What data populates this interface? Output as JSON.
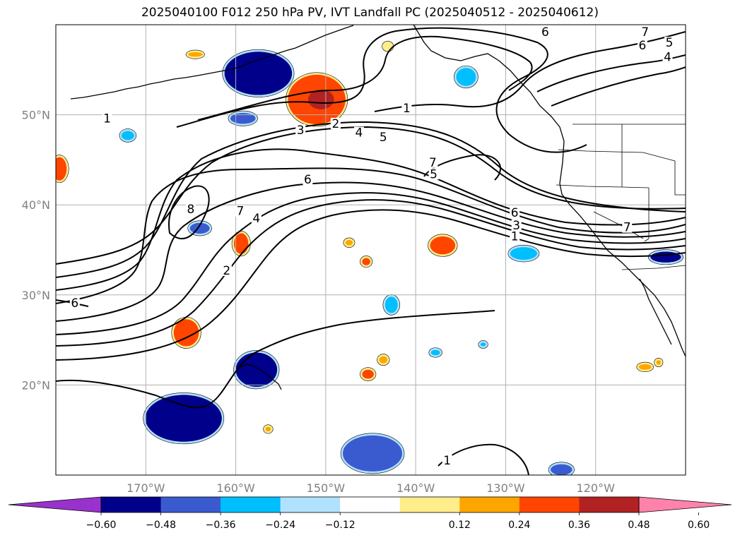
{
  "title": "2025040100 F012 250 hPa PV, IVT Landfall PC (2025040512 - 2025040612)",
  "map": {
    "projection": "plate-carree",
    "lon_range": [
      -180,
      -110
    ],
    "lat_range": [
      10,
      60
    ],
    "gridlines": true,
    "lat_ticks": [
      {
        "value": 50,
        "label": "50°N"
      },
      {
        "value": 40,
        "label": "40°N"
      },
      {
        "value": 30,
        "label": "30°N"
      },
      {
        "value": 20,
        "label": "20°N"
      }
    ],
    "lon_ticks": [
      {
        "value": -170,
        "label": "170°W"
      },
      {
        "value": -160,
        "label": "160°W"
      },
      {
        "value": -150,
        "label": "150°W"
      },
      {
        "value": -140,
        "label": "140°W"
      },
      {
        "value": -130,
        "label": "130°W"
      },
      {
        "value": -120,
        "label": "120°W"
      }
    ],
    "contour_field": "250 hPa PV",
    "contour_labels": [
      {
        "text": "1",
        "lon": -174.3,
        "lat": 49.4
      },
      {
        "text": "2",
        "lon": -148.9,
        "lat": 48.8
      },
      {
        "text": "3",
        "lon": -152.8,
        "lat": 48.1
      },
      {
        "text": "4",
        "lon": -146.3,
        "lat": 47.8
      },
      {
        "text": "5",
        "lon": -143.6,
        "lat": 47.3
      },
      {
        "text": "1",
        "lon": -141.0,
        "lat": 50.5
      },
      {
        "text": "6",
        "lon": -152.0,
        "lat": 42.6
      },
      {
        "text": "7",
        "lon": -138.1,
        "lat": 44.5
      },
      {
        "text": "5",
        "lon": -138.0,
        "lat": 43.2
      },
      {
        "text": "6",
        "lon": -129.0,
        "lat": 38.9
      },
      {
        "text": "3",
        "lon": -128.8,
        "lat": 37.5
      },
      {
        "text": "1",
        "lon": -129.0,
        "lat": 36.3
      },
      {
        "text": "8",
        "lon": -165.0,
        "lat": 39.3
      },
      {
        "text": "7",
        "lon": -159.5,
        "lat": 39.1
      },
      {
        "text": "4",
        "lon": -157.7,
        "lat": 38.3
      },
      {
        "text": "2",
        "lon": -161.0,
        "lat": 32.5
      },
      {
        "text": "6",
        "lon": -177.9,
        "lat": 28.9
      },
      {
        "text": "7",
        "lon": -116.5,
        "lat": 37.3
      },
      {
        "text": "6",
        "lon": -125.6,
        "lat": 59.0
      },
      {
        "text": "7",
        "lon": -114.5,
        "lat": 59.0
      },
      {
        "text": "6",
        "lon": -114.8,
        "lat": 57.5
      },
      {
        "text": "5",
        "lon": -111.8,
        "lat": 57.8
      },
      {
        "text": "4",
        "lon": -112.0,
        "lat": 56.2
      },
      {
        "text": "1",
        "lon": -136.5,
        "lat": 11.4
      }
    ],
    "shaded_field": "IVT Landfall PC",
    "shaded_regions": [
      {
        "lon": -157.5,
        "lat": 54.6,
        "w": 7.5,
        "h": 4.8,
        "value": -0.5
      },
      {
        "lon": -151.0,
        "lat": 51.7,
        "w": 6.4,
        "h": 5.5,
        "value": 0.45
      },
      {
        "lon": -159.2,
        "lat": 49.6,
        "w": 2.8,
        "h": 1.2,
        "value": -0.38
      },
      {
        "lon": -172.0,
        "lat": 47.7,
        "w": 1.4,
        "h": 1.0,
        "value": -0.3
      },
      {
        "lon": -179.6,
        "lat": 44.0,
        "w": 1.6,
        "h": 2.6,
        "value": 0.4
      },
      {
        "lon": -164.5,
        "lat": 56.7,
        "w": 1.6,
        "h": 0.5,
        "value": 0.3
      },
      {
        "lon": -143.1,
        "lat": 57.6,
        "w": 0.8,
        "h": 0.7,
        "value": 0.2
      },
      {
        "lon": -134.4,
        "lat": 54.2,
        "w": 2.2,
        "h": 2.0,
        "value": -0.32
      },
      {
        "lon": -164.0,
        "lat": 37.4,
        "w": 2.2,
        "h": 1.2,
        "value": -0.38
      },
      {
        "lon": -159.4,
        "lat": 35.7,
        "w": 1.6,
        "h": 2.3,
        "value": 0.45
      },
      {
        "lon": -147.4,
        "lat": 35.8,
        "w": 0.8,
        "h": 0.6,
        "value": 0.3
      },
      {
        "lon": -145.5,
        "lat": 33.7,
        "w": 0.9,
        "h": 0.8,
        "value": 0.4
      },
      {
        "lon": -137.0,
        "lat": 35.5,
        "w": 2.8,
        "h": 2.0,
        "value": 0.45
      },
      {
        "lon": -128.0,
        "lat": 34.6,
        "w": 3.0,
        "h": 1.4,
        "value": -0.35
      },
      {
        "lon": -112.2,
        "lat": 34.2,
        "w": 3.4,
        "h": 1.2,
        "value": -0.5
      },
      {
        "lon": -142.7,
        "lat": 28.9,
        "w": 1.4,
        "h": 1.8,
        "value": -0.35
      },
      {
        "lon": -165.5,
        "lat": 25.8,
        "w": 2.8,
        "h": 3.0,
        "value": 0.45
      },
      {
        "lon": -157.7,
        "lat": 21.7,
        "w": 4.6,
        "h": 3.8,
        "value": -0.5
      },
      {
        "lon": -137.8,
        "lat": 23.6,
        "w": 1.0,
        "h": 0.6,
        "value": -0.3
      },
      {
        "lon": -132.5,
        "lat": 24.5,
        "w": 0.6,
        "h": 0.4,
        "value": -0.3
      },
      {
        "lon": -143.6,
        "lat": 22.8,
        "w": 0.9,
        "h": 0.8,
        "value": 0.35
      },
      {
        "lon": -145.3,
        "lat": 21.2,
        "w": 1.3,
        "h": 1.0,
        "value": 0.45
      },
      {
        "lon": -165.8,
        "lat": 16.3,
        "w": 8.5,
        "h": 5.2,
        "value": -0.55
      },
      {
        "lon": -144.8,
        "lat": 12.4,
        "w": 6.6,
        "h": 4.0,
        "value": -0.4
      },
      {
        "lon": -156.4,
        "lat": 15.1,
        "w": 0.6,
        "h": 0.5,
        "value": 0.3
      },
      {
        "lon": -123.8,
        "lat": 10.6,
        "w": 2.4,
        "h": 1.2,
        "value": -0.4
      },
      {
        "lon": -114.5,
        "lat": 22.0,
        "w": 1.4,
        "h": 0.6,
        "value": 0.3
      },
      {
        "lon": -113.0,
        "lat": 22.5,
        "w": 0.5,
        "h": 0.5,
        "value": 0.3
      }
    ]
  },
  "colorbar": {
    "extend": "both",
    "bounds": [
      -0.72,
      -0.6,
      -0.48,
      -0.36,
      -0.24,
      -0.12,
      0.12,
      0.24,
      0.36,
      0.48,
      0.6,
      0.72
    ],
    "colors": [
      "#9932cc",
      "#00008b",
      "#3a5bd0",
      "#00bfff",
      "#b0e2ff",
      "#ffffff",
      "#ffec8b",
      "#ffa500",
      "#ff4500",
      "#b22222",
      "#ff82ab"
    ],
    "under_color": "#9932cc",
    "over_color": "#ff82ab",
    "tick_labels": [
      "−0.60",
      "−0.48",
      "−0.36",
      "−0.24",
      "−0.12",
      "0.12",
      "0.24",
      "0.36",
      "0.48",
      "0.60"
    ]
  }
}
